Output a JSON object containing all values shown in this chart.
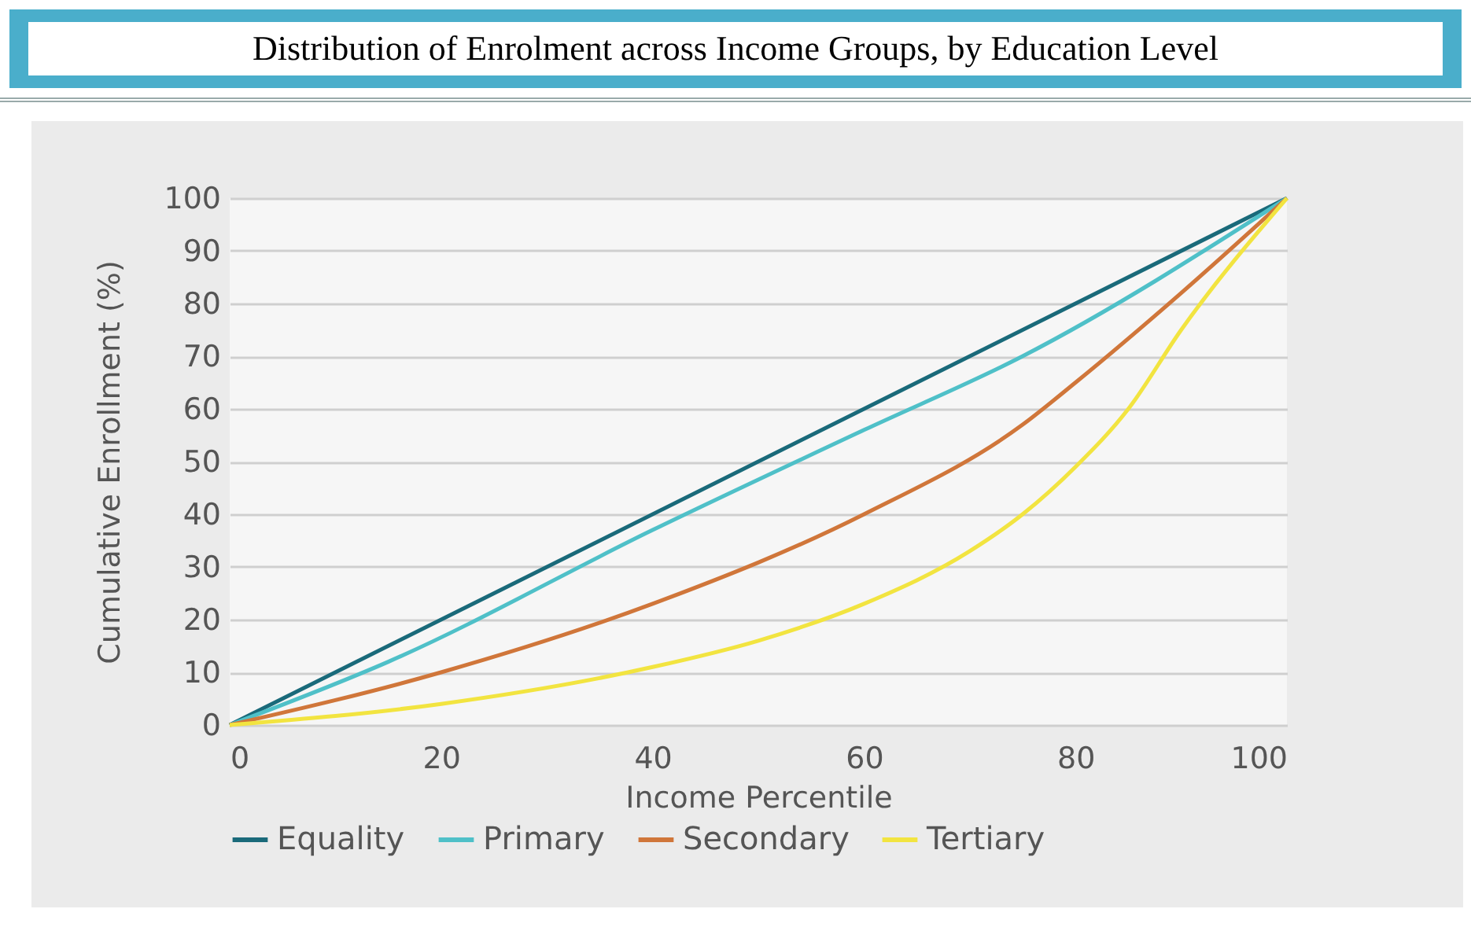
{
  "chart_data": {
    "type": "line",
    "title": "Distribution of Enrolment across Income Groups, by Education Level",
    "xlabel": "Income Percentile",
    "ylabel": "Cumulative Enrollment (%)",
    "xlim": [
      0,
      100
    ],
    "xticks": [
      0,
      20,
      40,
      60,
      80,
      100
    ],
    "ylim": [
      0,
      100
    ],
    "yticks": [
      0,
      10,
      20,
      30,
      40,
      50,
      60,
      70,
      80,
      90,
      100
    ],
    "grid": "y",
    "legend": "bottom",
    "marker": "none",
    "line_style": "solid",
    "series": [
      {
        "name": "Equality",
        "color": "#1a6a7a",
        "x": [
          0,
          100
        ],
        "values": [
          0,
          100
        ]
      },
      {
        "name": "Primary",
        "color": "#4fc0c8",
        "x": [
          0,
          15,
          40,
          60,
          75,
          100
        ],
        "values": [
          0,
          12,
          37,
          56,
          70,
          100
        ]
      },
      {
        "name": "Secondary",
        "color": "#d0763a",
        "x": [
          0,
          20,
          40,
          60,
          75,
          80,
          90,
          100
        ],
        "values": [
          0,
          10,
          23,
          40,
          57,
          65,
          82,
          100
        ]
      },
      {
        "name": "Tertiary",
        "color": "#f2e440",
        "x": [
          0,
          20,
          40,
          50,
          60,
          70,
          75,
          80,
          85,
          90,
          100
        ],
        "values": [
          0,
          4,
          11,
          16,
          23,
          33,
          40,
          49,
          60,
          75,
          100
        ]
      }
    ]
  }
}
